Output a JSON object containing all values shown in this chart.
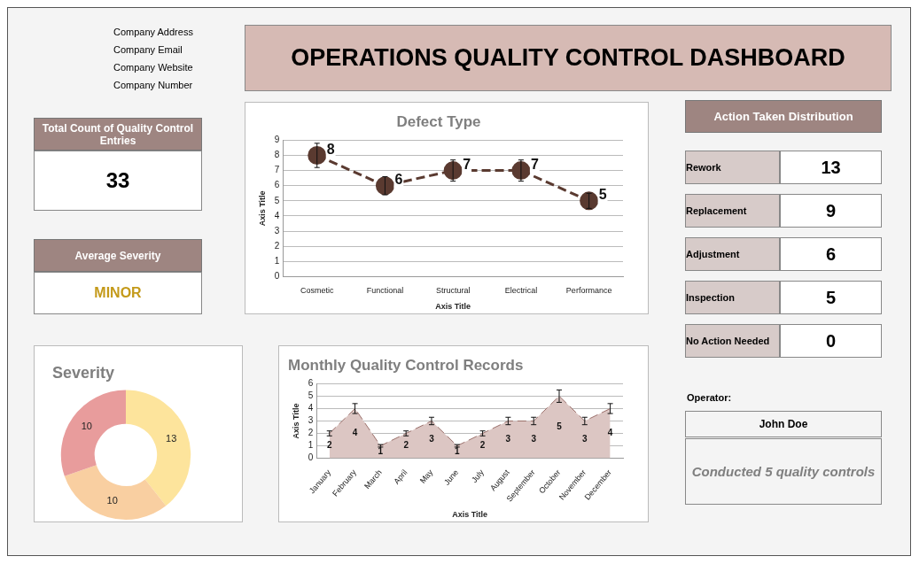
{
  "chart_data": [
    {
      "type": "other",
      "title": "OPERATIONS QUALITY CONTROL DASHBOARD",
      "annotations": [
        "Company Address",
        "Company Email",
        "Company Website",
        "Company Number"
      ]
    },
    {
      "type": "other",
      "title": "Total Count of Quality Control Entries",
      "annotations": [
        "33"
      ]
    },
    {
      "type": "other",
      "title": "Average Severity",
      "annotations": [
        "MINOR"
      ]
    },
    {
      "type": "line",
      "title": "Defect Type",
      "xlabel": "Axis Title",
      "ylabel": "Axis Title",
      "categories": [
        "Cosmetic",
        "Functional",
        "Structural",
        "Electrical",
        "Performance"
      ],
      "ylim": [
        0,
        9
      ],
      "yticks": [
        0,
        1,
        2,
        3,
        4,
        5,
        6,
        7,
        8,
        9
      ],
      "grid": "y",
      "marker": "circle",
      "line_style": "dashed",
      "data_labels": true,
      "series": [
        {
          "color": "#5a3a30",
          "values": [
            8,
            6,
            7,
            7,
            5
          ],
          "errors": [
            0.8,
            0.6,
            0.7,
            0.7,
            0.5
          ]
        }
      ]
    },
    {
      "type": "donut",
      "title": "Severity",
      "categories": [
        null,
        null,
        null
      ],
      "values": [
        13,
        10,
        10
      ],
      "colors": [
        "#fde49c",
        "#f9cfa1",
        "#e89c9c"
      ],
      "data_labels": true
    },
    {
      "type": "area",
      "title": "Monthly Quality Control Records",
      "xlabel": "Axis Title",
      "ylabel": "Axis Title",
      "categories": [
        "January",
        "February",
        "March",
        "April",
        "May",
        "June",
        "July",
        "August",
        "September",
        "October",
        "November",
        "December"
      ],
      "ylim": [
        0,
        6
      ],
      "yticks": [
        0,
        1,
        2,
        3,
        4,
        5,
        6
      ],
      "grid": "y",
      "line_style": "dashed",
      "data_labels": true,
      "series": [
        {
          "color": "#dcc6c3",
          "values": [
            2,
            4,
            1,
            2,
            3,
            1,
            2,
            3,
            3,
            5,
            3,
            4
          ],
          "errors": [
            0.2,
            0.4,
            0.1,
            0.2,
            0.3,
            0.1,
            0.2,
            0.3,
            0.3,
            0.5,
            0.3,
            0.4
          ]
        }
      ]
    },
    {
      "type": "other",
      "title": "Action Taken Distribution",
      "categories": [
        "Rework",
        "Replacement",
        "Adjustment",
        "Inspection",
        "No Action Needed"
      ],
      "values": [
        13,
        9,
        6,
        5,
        0
      ],
      "data_labels": true
    },
    {
      "type": "other",
      "title": "Operator:",
      "annotations": [
        "John Doe",
        "Conducted 5 quality controls"
      ]
    }
  ]
}
